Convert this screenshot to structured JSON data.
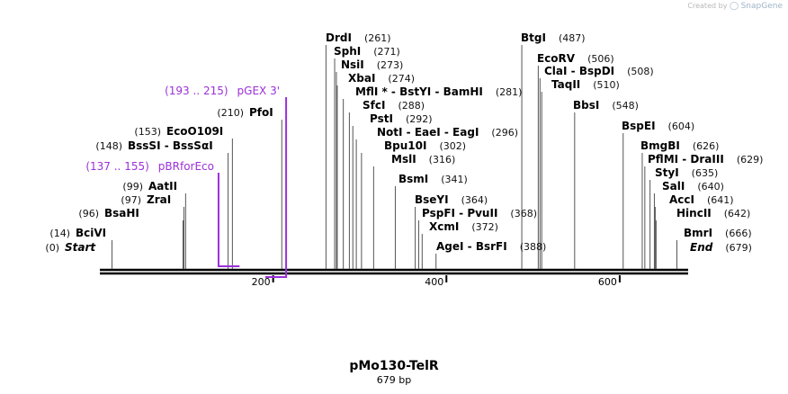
{
  "watermark": {
    "created_by": "Created by",
    "brand": "SnapGene"
  },
  "plasmid": {
    "name": "pMo130-TelR",
    "size_label": "679 bp",
    "length": 679
  },
  "axis": {
    "ticks": [
      {
        "value": 200,
        "label": "200"
      },
      {
        "value": 400,
        "label": "400"
      },
      {
        "value": 600,
        "label": "600"
      }
    ]
  },
  "sites": [
    {
      "id": "start",
      "name": "Start",
      "pos_label": "(0)",
      "pos": 0,
      "italic": true
    },
    {
      "id": "bcivi",
      "name": "BciVI",
      "pos_label": "(14)",
      "pos": 14
    },
    {
      "id": "bsahi",
      "name": "BsaHI",
      "pos_label": "(96)",
      "pos": 96
    },
    {
      "id": "zrai",
      "name": "ZraI",
      "pos_label": "(97)",
      "pos": 97
    },
    {
      "id": "aatii",
      "name": "AatII",
      "pos_label": "(99)",
      "pos": 99
    },
    {
      "id": "bsssi",
      "name": "BssSI - BssSαI",
      "pos_label": "(148)",
      "pos": 148
    },
    {
      "id": "eco0109i",
      "name": "EcoO109I",
      "pos_label": "(153)",
      "pos": 153
    },
    {
      "id": "pfoi",
      "name": "PfoI",
      "pos_label": "(210)",
      "pos": 210
    },
    {
      "id": "drdi",
      "name": "DrdI",
      "pos_label": "(261)",
      "pos": 261
    },
    {
      "id": "sphi",
      "name": "SphI",
      "pos_label": "(271)",
      "pos": 271
    },
    {
      "id": "nsii",
      "name": "NsiI",
      "pos_label": "(273)",
      "pos": 273
    },
    {
      "id": "xbai",
      "name": "XbaI",
      "pos_label": "(274)",
      "pos": 274
    },
    {
      "id": "mfli",
      "name": "MflI * - BstYI - BamHI",
      "pos_label": "(281)",
      "pos": 281
    },
    {
      "id": "sfci",
      "name": "SfcI",
      "pos_label": "(288)",
      "pos": 288
    },
    {
      "id": "psti",
      "name": "PstI",
      "pos_label": "(292)",
      "pos": 292
    },
    {
      "id": "noti",
      "name": "NotI - EaeI - EagI",
      "pos_label": "(296)",
      "pos": 296
    },
    {
      "id": "bpu10i",
      "name": "Bpu10I",
      "pos_label": "(302)",
      "pos": 302
    },
    {
      "id": "msli",
      "name": "MslI",
      "pos_label": "(316)",
      "pos": 316
    },
    {
      "id": "bsmi",
      "name": "BsmI",
      "pos_label": "(341)",
      "pos": 341
    },
    {
      "id": "bseyi",
      "name": "BseYI",
      "pos_label": "(364)",
      "pos": 364
    },
    {
      "id": "pspfi",
      "name": "PspFI - PvuII",
      "pos_label": "(368)",
      "pos": 368
    },
    {
      "id": "xcmi",
      "name": "XcmI",
      "pos_label": "(372)",
      "pos": 372
    },
    {
      "id": "agei",
      "name": "AgeI - BsrFI",
      "pos_label": "(388)",
      "pos": 388
    },
    {
      "id": "btgi",
      "name": "BtgI",
      "pos_label": "(487)",
      "pos": 487
    },
    {
      "id": "ecorv",
      "name": "EcoRV",
      "pos_label": "(506)",
      "pos": 506
    },
    {
      "id": "clai",
      "name": "ClaI - BspDI",
      "pos_label": "(508)",
      "pos": 508
    },
    {
      "id": "taqii",
      "name": "TaqII",
      "pos_label": "(510)",
      "pos": 510
    },
    {
      "id": "bbsi",
      "name": "BbsI",
      "pos_label": "(548)",
      "pos": 548
    },
    {
      "id": "bspei",
      "name": "BspEI",
      "pos_label": "(604)",
      "pos": 604
    },
    {
      "id": "bmgbi",
      "name": "BmgBI",
      "pos_label": "(626)",
      "pos": 626
    },
    {
      "id": "pflmi",
      "name": "PflMI - DraIII",
      "pos_label": "(629)",
      "pos": 629
    },
    {
      "id": "styi",
      "name": "StyI",
      "pos_label": "(635)",
      "pos": 635
    },
    {
      "id": "sali",
      "name": "SalI",
      "pos_label": "(640)",
      "pos": 640
    },
    {
      "id": "acci",
      "name": "AccI",
      "pos_label": "(641)",
      "pos": 641
    },
    {
      "id": "hincii",
      "name": "HincII",
      "pos_label": "(642)",
      "pos": 642
    },
    {
      "id": "bmri",
      "name": "BmrI",
      "pos_label": "(666)",
      "pos": 666
    },
    {
      "id": "end",
      "name": "End",
      "pos_label": "(679)",
      "pos": 679,
      "italic": true
    }
  ],
  "primers": [
    {
      "id": "pbrforeco",
      "name": "pBRforEco",
      "range_label": "(137 .. 155)",
      "start": 137,
      "end": 155,
      "strand": "forward"
    },
    {
      "id": "pgex3",
      "name": "pGEX 3'",
      "range_label": "(193 .. 215)",
      "start": 193,
      "end": 215,
      "strand": "reverse"
    }
  ],
  "colors": {
    "primer": "#9b30d9",
    "backbone": "#000000",
    "leader": "#555555"
  }
}
